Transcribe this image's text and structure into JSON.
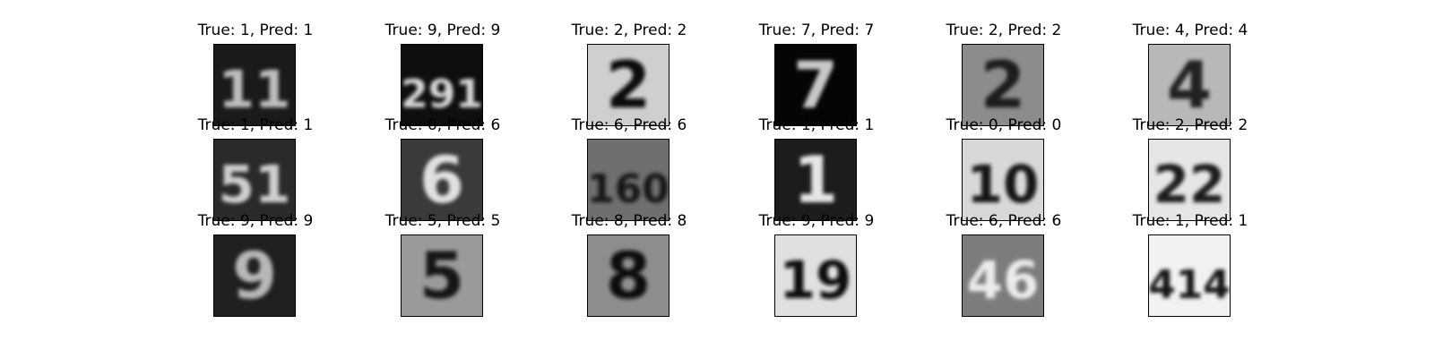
{
  "figure": {
    "items": [
      {
        "title": "True: 1, Pred: 1",
        "digits": "11",
        "bg": "#1a1a1a",
        "fg": "#bdbdbd"
      },
      {
        "title": "True: 9, Pred: 9",
        "digits": "291",
        "bg": "#0e0e0e",
        "fg": "#d6d6d6"
      },
      {
        "title": "True: 2, Pred: 2",
        "digits": "2",
        "bg": "#cfcfcf",
        "fg": "#101010"
      },
      {
        "title": "True: 7, Pred: 7",
        "digits": "7",
        "bg": "#050505",
        "fg": "#c8c8c8"
      },
      {
        "title": "True: 2, Pred: 2",
        "digits": "2",
        "bg": "#8c8c8c",
        "fg": "#1e1e1e"
      },
      {
        "title": "True: 4, Pred: 4",
        "digits": "4",
        "bg": "#b8b8b8",
        "fg": "#222222"
      },
      {
        "title": "True: 1, Pred: 1",
        "digits": "51",
        "bg": "#2a2a2a",
        "fg": "#cfcfcf"
      },
      {
        "title": "True: 6, Pred: 6",
        "digits": "6",
        "bg": "#3a3a3a",
        "fg": "#e0e0e0"
      },
      {
        "title": "True: 6, Pred: 6",
        "digits": "160",
        "bg": "#6f6f6f",
        "fg": "#141414"
      },
      {
        "title": "True: 1, Pred: 1",
        "digits": "1",
        "bg": "#1c1c1c",
        "fg": "#e6e6e6"
      },
      {
        "title": "True: 0, Pred: 0",
        "digits": "10",
        "bg": "#d8d8d8",
        "fg": "#141414"
      },
      {
        "title": "True: 2, Pred: 2",
        "digits": "22",
        "bg": "#e6e6e6",
        "fg": "#1f1f1f"
      },
      {
        "title": "True: 9, Pred: 9",
        "digits": "9",
        "bg": "#202020",
        "fg": "#b7b7b7"
      },
      {
        "title": "True: 5, Pred: 5",
        "digits": "5",
        "bg": "#9a9a9a",
        "fg": "#161616"
      },
      {
        "title": "True: 8, Pred: 8",
        "digits": "8",
        "bg": "#8d8d8d",
        "fg": "#0f0f0f"
      },
      {
        "title": "True: 9, Pred: 9",
        "digits": "19",
        "bg": "#e0e0e0",
        "fg": "#111111"
      },
      {
        "title": "True: 6, Pred: 6",
        "digits": "46",
        "bg": "#7c7c7c",
        "fg": "#ebebeb"
      },
      {
        "title": "True: 1, Pred: 1",
        "digits": "414",
        "bg": "#f2f2f2",
        "fg": "#121212"
      }
    ]
  }
}
